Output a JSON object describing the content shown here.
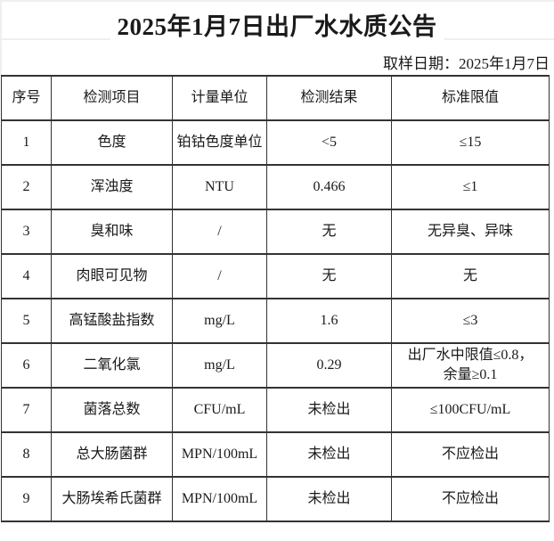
{
  "page": {
    "title": "2025年1月7日出厂水水质公告",
    "sample_date_label": "取样日期：2025年1月7日"
  },
  "table": {
    "headers": [
      "序号",
      "检测项目",
      "计量单位",
      "检测结果",
      "标准限值"
    ],
    "rows": [
      [
        "1",
        "色度",
        "铂钴色度单位",
        "<5",
        "≤15"
      ],
      [
        "2",
        "浑浊度",
        "NTU",
        "0.466",
        "≤1"
      ],
      [
        "3",
        "臭和味",
        "/",
        "无",
        "无异臭、异味"
      ],
      [
        "4",
        "肉眼可见物",
        "/",
        "无",
        "无"
      ],
      [
        "5",
        "高锰酸盐指数",
        "mg/L",
        "1.6",
        "≤3"
      ],
      [
        "6",
        "二氧化氯",
        "mg/L",
        "0.29",
        "出厂水中限值≤0.8，\n余量≥0.1"
      ],
      [
        "7",
        "菌落总数",
        "CFU/mL",
        "未检出",
        "≤100CFU/mL"
      ],
      [
        "8",
        "总大肠菌群",
        "MPN/100mL",
        "未检出",
        "不应检出"
      ],
      [
        "9",
        "大肠埃希氏菌群",
        "MPN/100mL",
        "未检出",
        "不应检出"
      ]
    ]
  },
  "colors": {
    "background": "#ffffff",
    "text": "#1a1a1a",
    "border": "#333333",
    "gridline": "#efefef"
  }
}
